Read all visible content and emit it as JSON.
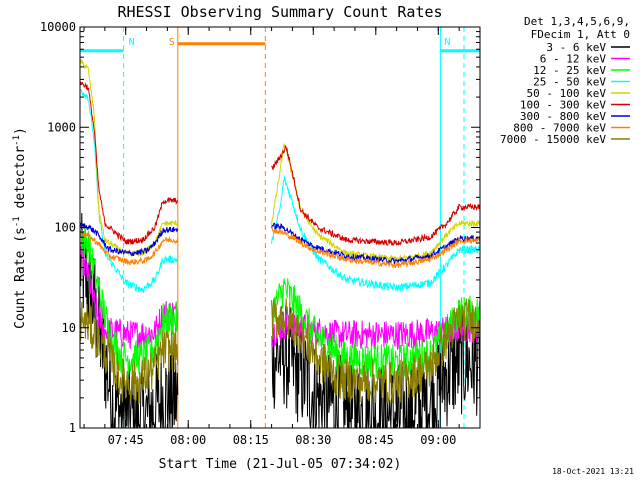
{
  "chart_data": {
    "type": "line",
    "title": "RHESSI Observing Summary Count Rates",
    "xlabel": "Start Time (21-Jul-05 07:34:02)",
    "ylabel_parts": [
      "Count Rate (s",
      "-1",
      " detector",
      "-1",
      ")"
    ],
    "yscale": "log",
    "ylim": [
      1,
      10000
    ],
    "xlim": [
      "07:34:02",
      "09:10:00"
    ],
    "x_ticks": [
      "07:45",
      "08:00",
      "08:15",
      "08:30",
      "08:45",
      "09:00"
    ],
    "y_ticks": [
      "1",
      "10",
      "100",
      "1000",
      "10000"
    ],
    "legend_header": [
      "Det 1,3,4,5,6,9,",
      "FDecim 1, Att 0"
    ],
    "legend_position": "right",
    "series": [
      {
        "name": "3 - 6 keV",
        "color": "#000000"
      },
      {
        "name": "6 - 12 keV",
        "color": "#ff00ff"
      },
      {
        "name": "12 - 25 keV",
        "color": "#00ff00"
      },
      {
        "name": "25 - 50 keV",
        "color": "#00ffff"
      },
      {
        "name": "50 - 100 keV",
        "color": "#d4d400"
      },
      {
        "name": "100 - 300 keV",
        "color": "#d40000"
      },
      {
        "name": "300 - 800 keV",
        "color": "#0000d4"
      },
      {
        "name": "800 - 7000 keV",
        "color": "#ff8000"
      },
      {
        "name": "7000 - 15000 keV",
        "color": "#8b7d00"
      }
    ],
    "data_gaps": [
      [
        "07:57:30",
        "08:20:00"
      ]
    ],
    "annotations": [
      {
        "label": "N",
        "color": "#00ffff",
        "type": "night",
        "from": "07:34:02",
        "to": "07:44:30"
      },
      {
        "label": "N",
        "color": "#00ffff",
        "type": "night",
        "from": "09:00:30",
        "to": "09:10:00"
      },
      {
        "label": "S",
        "color": "#ff8000",
        "type": "saa",
        "from": "07:57:30",
        "to": "08:18:30"
      }
    ],
    "grid": false
  },
  "footer": {
    "date_stamp": "18-Oct-2021 13:21"
  }
}
